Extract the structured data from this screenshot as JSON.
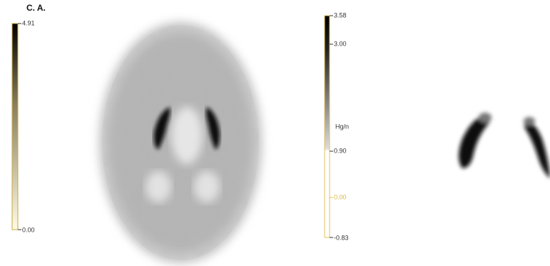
{
  "header": {
    "label": "C. A."
  },
  "colorbars": [
    {
      "ticks": [
        "4.91",
        "0.00"
      ]
    },
    {
      "ticks": [
        "3.58",
        "3.00",
        "Hg/n",
        "0.90",
        "0.00",
        "-0.83"
      ]
    }
  ]
}
